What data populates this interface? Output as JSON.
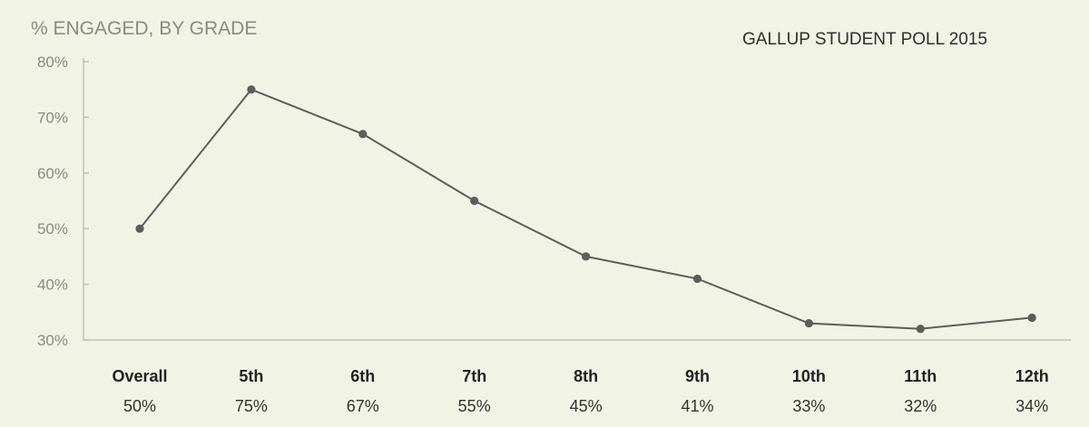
{
  "chart_data": {
    "type": "line",
    "title": "GALLUP STUDENT POLL 2015",
    "ylabel": "% ENGAGED, BY GRADE",
    "xlabel": "",
    "ylim": [
      30,
      80
    ],
    "yticks": [
      30,
      40,
      50,
      60,
      70,
      80
    ],
    "ytick_labels": [
      "30%",
      "40%",
      "50%",
      "60%",
      "70%",
      "80%"
    ],
    "grid": false,
    "legend": "none",
    "categories": [
      "Overall",
      "5th",
      "6th",
      "7th",
      "8th",
      "9th",
      "10th",
      "11th",
      "12th"
    ],
    "series": [
      {
        "values": [
          50,
          75,
          67,
          55,
          45,
          41,
          33,
          32,
          34
        ],
        "data_labels": [
          "50%",
          "75%",
          "67%",
          "55%",
          "45%",
          "41%",
          "33%",
          "32%",
          "34%"
        ],
        "color": "#5d5d5d"
      }
    ],
    "background": "#f1f3e4",
    "axis_color": "#bfc1b3"
  }
}
